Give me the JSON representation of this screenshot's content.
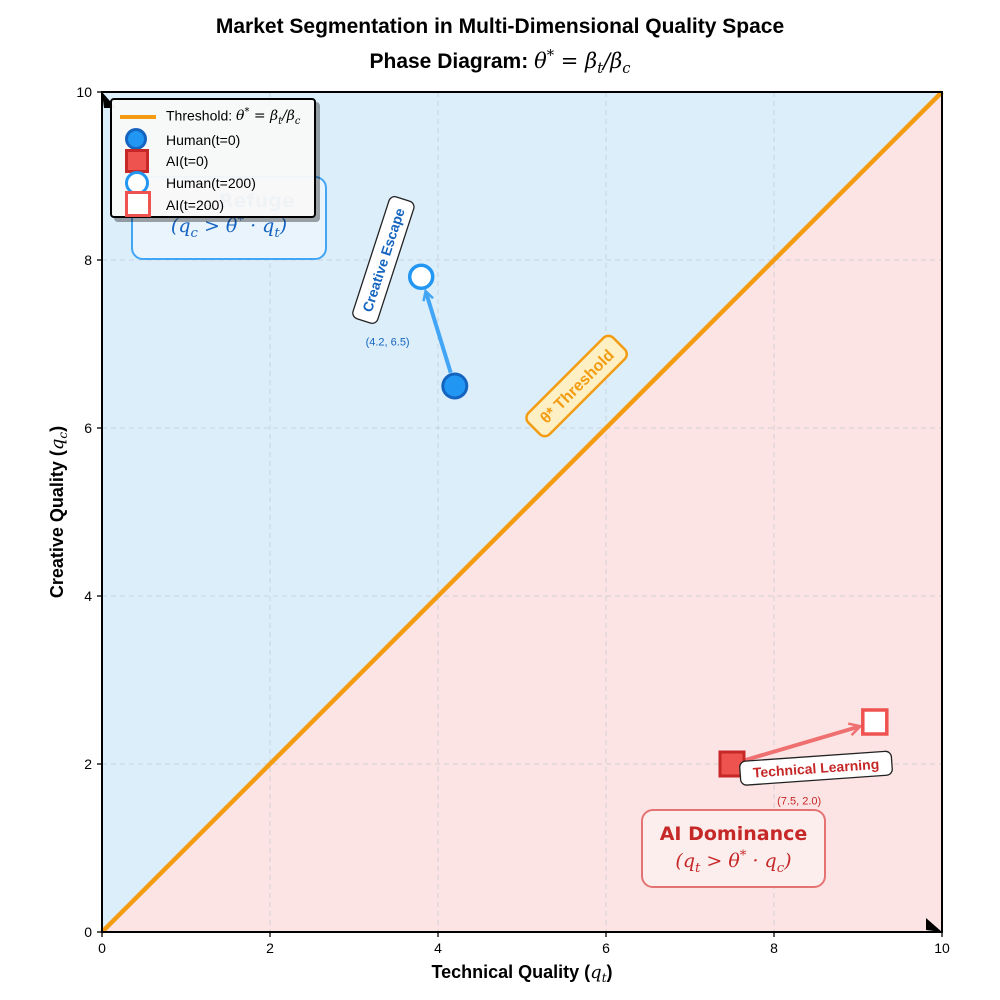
{
  "title_line1": "Market Segmentation in Multi-Dimensional Quality Space",
  "title_line2_prefix": "Phase Diagram: ",
  "title_line2_math": "θ* = βt/βc",
  "colors": {
    "human": "#2196f3",
    "human_dark": "#1565c0",
    "ai": "#ef5350",
    "ai_dark": "#c62828",
    "threshold": "#f39c12",
    "human_region": "#ddeefb",
    "ai_region": "#fce4e4"
  },
  "chart_data": {
    "type": "scatter",
    "title": "Market Segmentation in Multi-Dimensional Quality Space — Phase Diagram: θ* = βt/βc",
    "xlabel": "Technical Quality (qt)",
    "ylabel": "Creative Quality (qc)",
    "xlim": [
      0,
      10
    ],
    "ylim": [
      0,
      10
    ],
    "xticks": [
      0,
      2,
      4,
      6,
      8,
      10
    ],
    "yticks": [
      0,
      2,
      4,
      6,
      8,
      10
    ],
    "grid": true,
    "legend_position": "top-left",
    "threshold": {
      "name": "Threshold: θ* = βt/βc",
      "x": [
        0,
        10
      ],
      "y": [
        0,
        10
      ]
    },
    "series": [
      {
        "name": "Human(t=0)",
        "marker": "filled-circle",
        "x": 4.2,
        "y": 6.5
      },
      {
        "name": "AI(t=0)",
        "marker": "filled-square",
        "x": 7.5,
        "y": 2.0
      },
      {
        "name": "Human(t=200)",
        "marker": "open-circle",
        "x": 3.8,
        "y": 7.8
      },
      {
        "name": "AI(t=200)",
        "marker": "open-square",
        "x": 9.2,
        "y": 2.5
      }
    ],
    "arrows": [
      {
        "label": "Creative Escape",
        "from": [
          4.2,
          6.5
        ],
        "to": [
          3.8,
          7.8
        ],
        "series": "human"
      },
      {
        "label": "Technical Learning",
        "from": [
          7.5,
          2.0
        ],
        "to": [
          9.2,
          2.5
        ],
        "series": "ai"
      }
    ],
    "point_annotations": [
      {
        "text": "(4.2, 6.5)",
        "x": 4.2,
        "y": 6.5
      },
      {
        "text": "(7.5, 2.0)",
        "x": 7.5,
        "y": 2.0
      }
    ],
    "region_labels": [
      {
        "title": "Refuge",
        "math": "(qc > θ* · qt)",
        "region": "upper-left"
      },
      {
        "title": "AI Dominance",
        "math": "(qt > θ* · qc)",
        "region": "lower-right"
      }
    ],
    "threshold_label": "θ* Threshold"
  }
}
